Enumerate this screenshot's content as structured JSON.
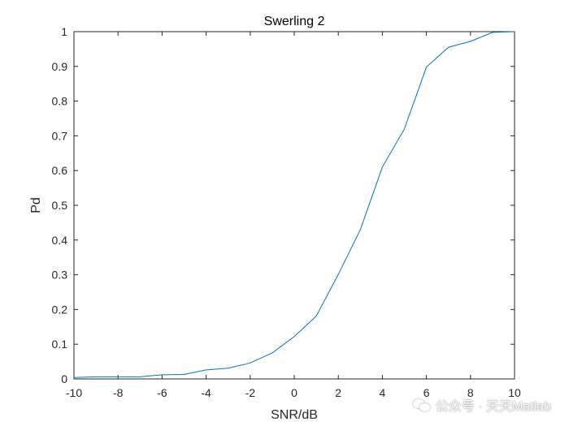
{
  "chart_data": {
    "type": "line",
    "title": "Swerling 2",
    "xlabel": "SNR/dB",
    "ylabel": "Pd",
    "xlim": [
      -10,
      10
    ],
    "ylim": [
      0,
      1
    ],
    "xticks": [
      -10,
      -8,
      -6,
      -4,
      -2,
      0,
      2,
      4,
      6,
      8,
      10
    ],
    "yticks": [
      0,
      0.1,
      0.2,
      0.3,
      0.4,
      0.5,
      0.6,
      0.7,
      0.8,
      0.9,
      1
    ],
    "xtick_labels": [
      "-10",
      "-8",
      "-6",
      "-4",
      "-2",
      "0",
      "2",
      "4",
      "6",
      "8",
      "10"
    ],
    "ytick_labels": [
      "0",
      "0.1",
      "0.2",
      "0.3",
      "0.4",
      "0.5",
      "0.6",
      "0.7",
      "0.8",
      "0.9",
      "1"
    ],
    "grid": false,
    "line_color": "#0072BD",
    "series": [
      {
        "x": [
          -10,
          -9,
          -8,
          -7,
          -6,
          -5,
          -4,
          -3,
          -2,
          -1,
          0,
          1,
          2,
          3,
          4,
          5,
          6,
          7,
          8,
          9,
          10
        ],
        "values": [
          0.004,
          0.006,
          0.006,
          0.006,
          0.012,
          0.013,
          0.026,
          0.031,
          0.046,
          0.075,
          0.122,
          0.181,
          0.301,
          0.43,
          0.61,
          0.72,
          0.898,
          0.955,
          0.972,
          0.998,
          1.0
        ]
      }
    ]
  },
  "watermark": {
    "text": "公众号 · 天天Matlab"
  }
}
